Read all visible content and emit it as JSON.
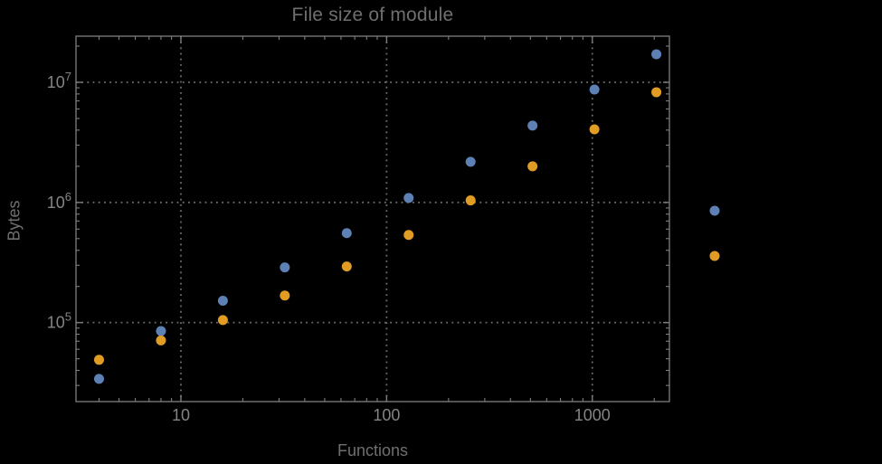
{
  "chart_data": {
    "type": "scatter",
    "title": "File size of module",
    "xlabel": "Functions",
    "ylabel": "Bytes",
    "xscale": "log",
    "yscale": "log",
    "xlim": [
      3.09,
      2370
    ],
    "ylim": [
      22000,
      24200000
    ],
    "grid": {
      "style": "dotted",
      "x_at": [
        10,
        100,
        1000
      ],
      "y_at": [
        100000,
        1000000,
        10000000
      ]
    },
    "x_ticks": [
      {
        "value": 10,
        "label": "10"
      },
      {
        "value": 100,
        "label": "100"
      },
      {
        "value": 1000,
        "label": "1000"
      }
    ],
    "y_ticks": [
      {
        "value": 100000,
        "mantissa": "10",
        "exponent": "5"
      },
      {
        "value": 1000000,
        "mantissa": "10",
        "exponent": "6"
      },
      {
        "value": 10000000,
        "mantissa": "10",
        "exponent": "7"
      }
    ],
    "x": [
      4,
      8,
      16,
      32,
      64,
      128,
      256,
      512,
      1024,
      2048
    ],
    "series": [
      {
        "name": "series-1",
        "color": "#5e81b5",
        "values": [
          34000,
          85000,
          152000,
          288000,
          555000,
          1090000,
          2180000,
          4360000,
          8700000,
          17100000
        ]
      },
      {
        "name": "series-2",
        "color": "#e19c24",
        "values": [
          49000,
          71000,
          105000,
          168000,
          293000,
          536000,
          1040000,
          2000000,
          4060000,
          8270000
        ]
      }
    ],
    "legend": {
      "position": "right-outside-frame",
      "items": [
        {
          "series": "series-1",
          "color": "#5e81b5",
          "label": ""
        },
        {
          "series": "series-2",
          "color": "#e19c24",
          "label": ""
        }
      ]
    }
  },
  "colors": {
    "background": "#000000",
    "frame": "#6f6f6f",
    "gridline": "#6e6e6e",
    "tick": "#7d7d7d",
    "tick_label": "#848484",
    "title": "#6f6f6f",
    "axis_label": "#6f6f6f",
    "series1": "#5e81b5",
    "series2": "#e19c24"
  }
}
